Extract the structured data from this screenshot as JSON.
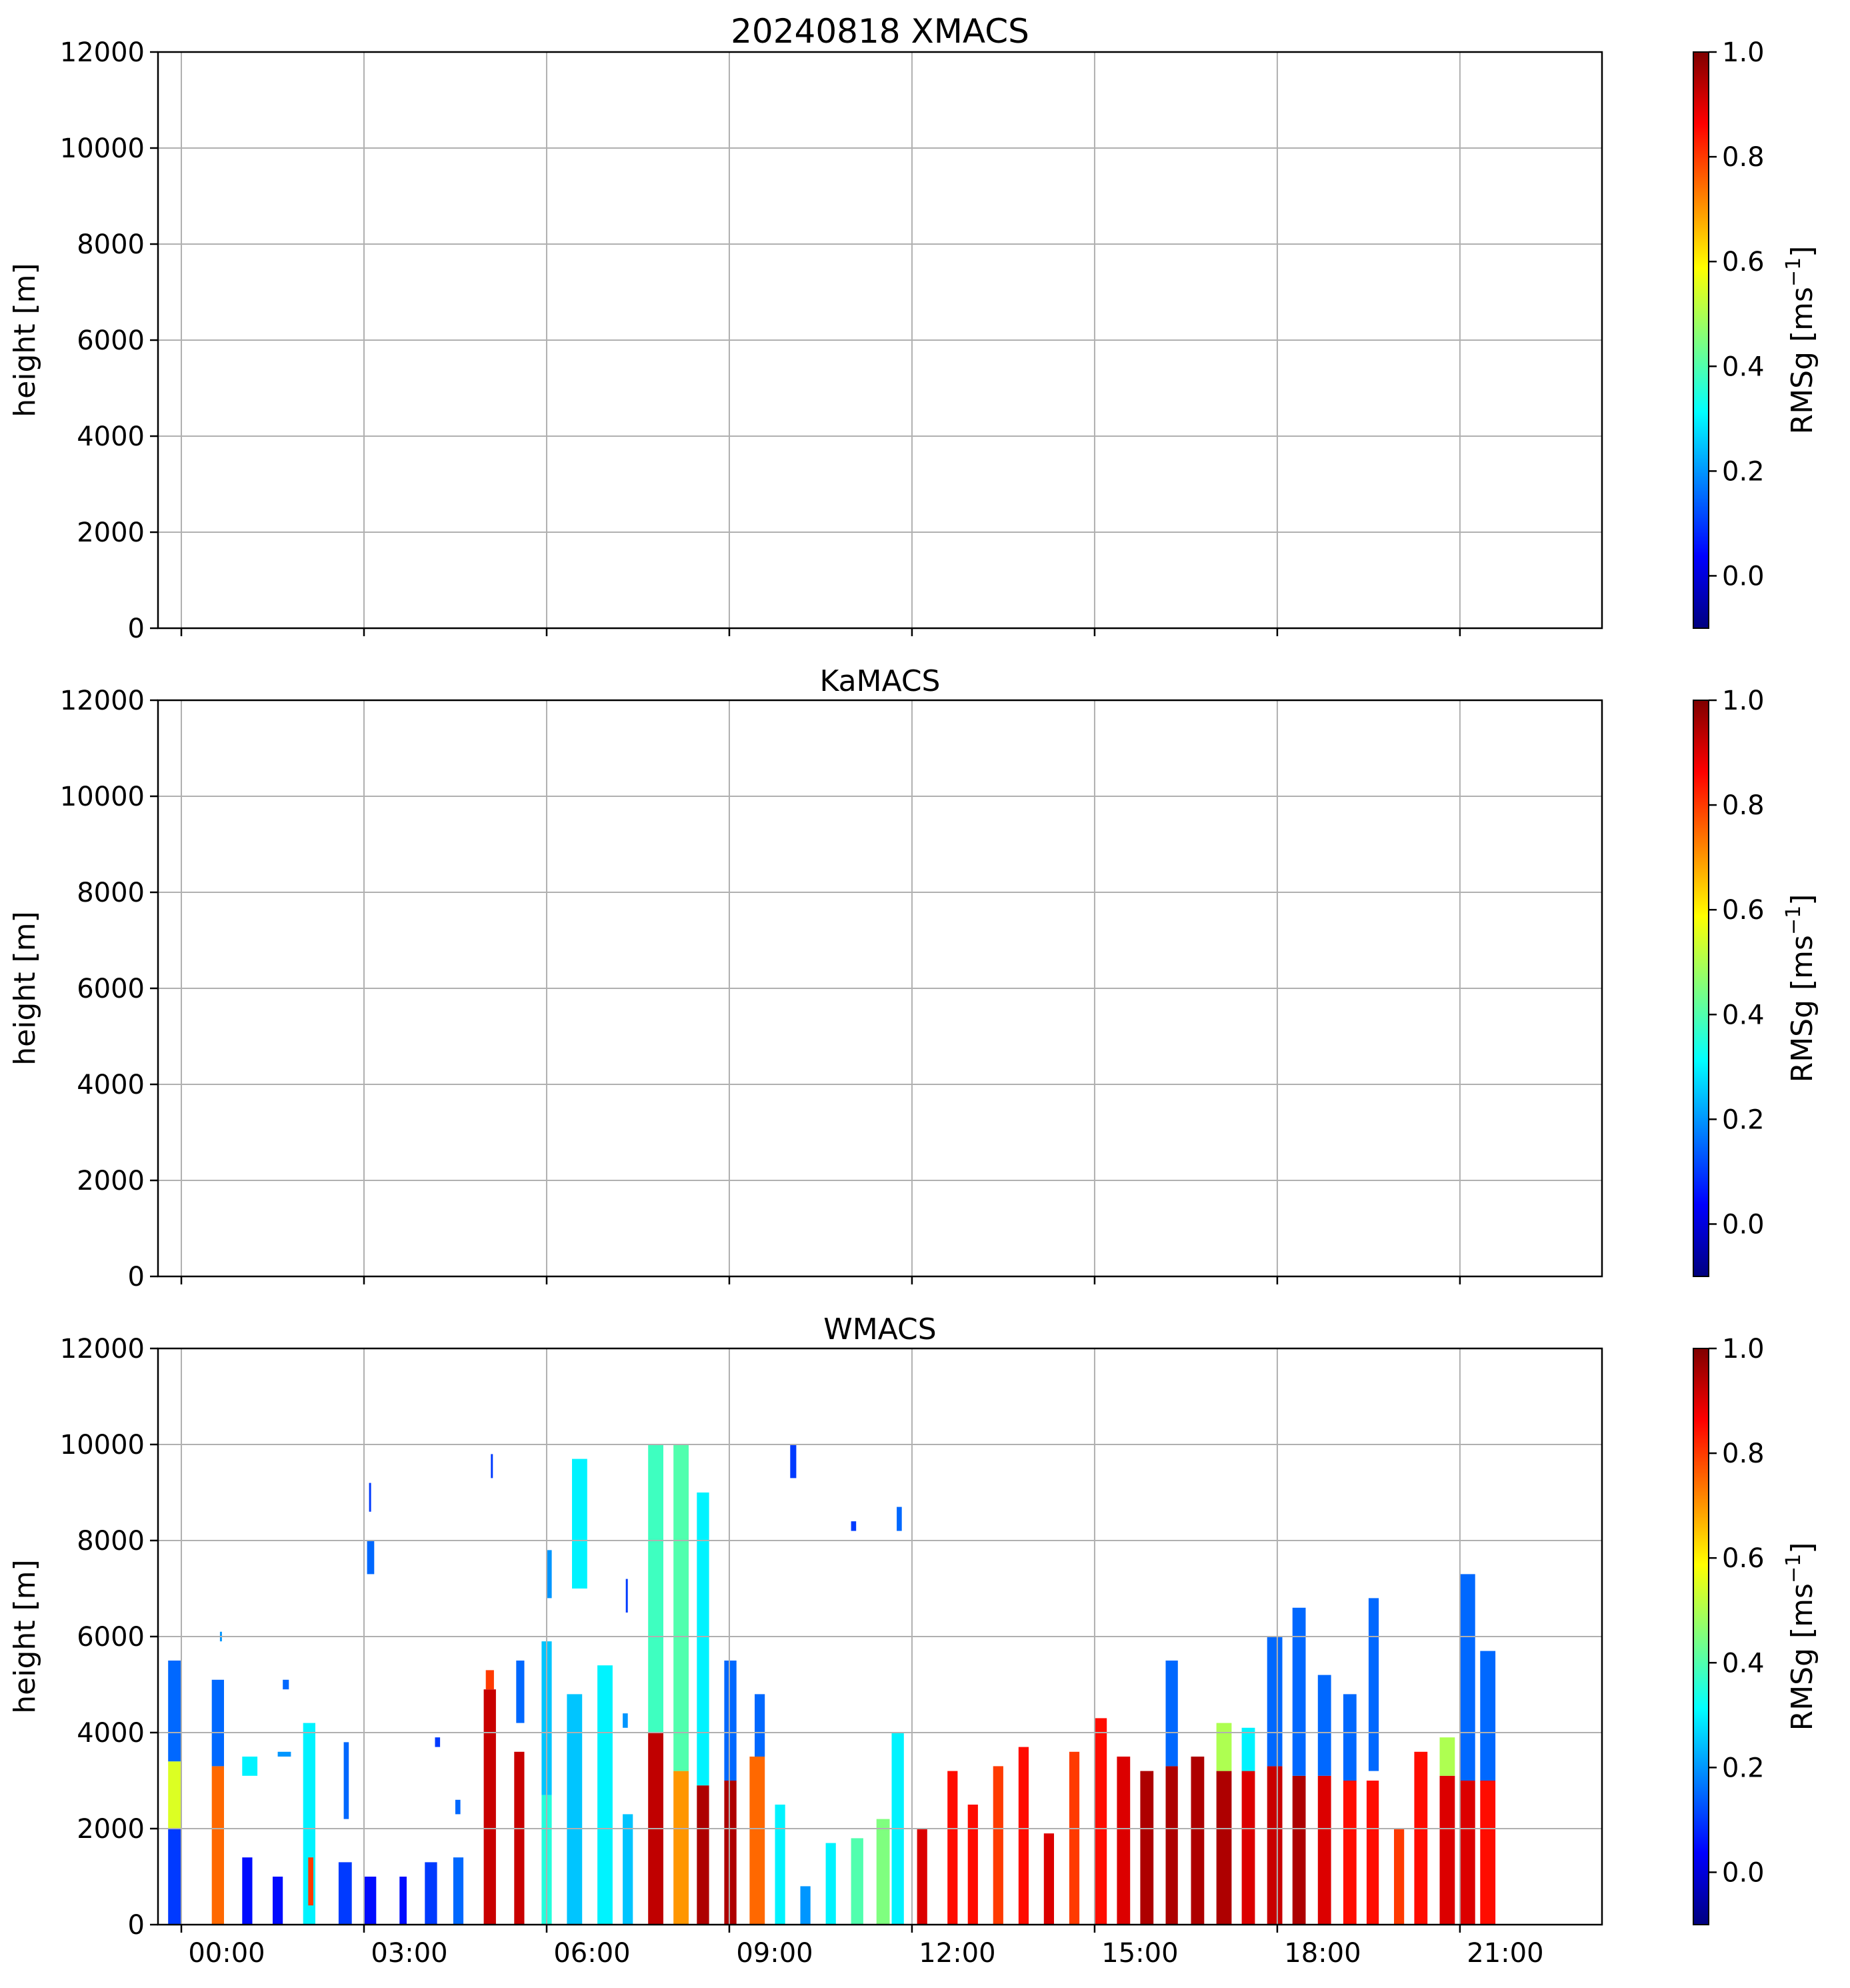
{
  "colormap": [
    "#00007f",
    "#0000ff",
    "#007fff",
    "#00ffff",
    "#7fff7f",
    "#ffff00",
    "#ff7f00",
    "#ff0000",
    "#7f0000"
  ],
  "chart_data": [
    {
      "type": "heatmap",
      "title": "20240818 XMACS",
      "xlabel": "",
      "ylabel": "height [m]",
      "xlim": [
        "23:37",
        "23:20"
      ],
      "xticks": [
        "00:00",
        "03:00",
        "06:00",
        "09:00",
        "12:00",
        "15:00",
        "18:00",
        "21:00"
      ],
      "ylim": [
        0,
        12000
      ],
      "yticks": [
        "0",
        "2000",
        "4000",
        "6000",
        "8000",
        "10000",
        "12000"
      ],
      "grid": true,
      "colorbar": {
        "label": "RMSg [ms",
        "label_sup": "−1",
        "label_end": "]",
        "range": [
          -0.1,
          1.0
        ],
        "ticks": [
          "0.0",
          "0.2",
          "0.4",
          "0.6",
          "0.8",
          "1.0"
        ]
      },
      "segments": []
    },
    {
      "type": "heatmap",
      "title": "KaMACS",
      "xlabel": "",
      "ylabel": "height [m]",
      "xlim": [
        "23:37",
        "23:20"
      ],
      "xticks": [
        "00:00",
        "03:00",
        "06:00",
        "09:00",
        "12:00",
        "15:00",
        "18:00",
        "21:00"
      ],
      "ylim": [
        0,
        12000
      ],
      "yticks": [
        "0",
        "2000",
        "4000",
        "6000",
        "8000",
        "10000",
        "12000"
      ],
      "grid": true,
      "colorbar": {
        "label": "RMSg [ms",
        "label_sup": "−1",
        "label_end": "]",
        "range": [
          -0.1,
          1.0
        ],
        "ticks": [
          "0.0",
          "0.2",
          "0.4",
          "0.6",
          "0.8",
          "1.0"
        ]
      },
      "segments": []
    },
    {
      "type": "heatmap",
      "title": "WMACS",
      "xlabel": "",
      "ylabel": "height [m]",
      "xlim": [
        "23:37",
        "23:20"
      ],
      "xticks": [
        "00:00",
        "03:00",
        "06:00",
        "09:00",
        "12:00",
        "15:00",
        "18:00",
        "21:00"
      ],
      "ylim": [
        0,
        12000
      ],
      "yticks": [
        "0",
        "2000",
        "4000",
        "6000",
        "8000",
        "10000",
        "12000"
      ],
      "grid": true,
      "colorbar": {
        "label": "RMSg [ms",
        "label_sup": "−1",
        "label_end": "]",
        "range": [
          -0.1,
          1.0
        ],
        "ticks": [
          "0.0",
          "0.2",
          "0.4",
          "0.6",
          "0.8",
          "1.0"
        ]
      },
      "segments": [
        {
          "t0": "23:47",
          "t1": "00:00",
          "h0": 0,
          "h1": 2000,
          "v": 0.1
        },
        {
          "t0": "23:47",
          "t1": "00:00",
          "h0": 2000,
          "h1": 3400,
          "v": 0.55
        },
        {
          "t0": "23:47",
          "t1": "00:00",
          "h0": 3400,
          "h1": 5500,
          "v": 0.15
        },
        {
          "t0": "00:30",
          "t1": "00:42",
          "h0": 0,
          "h1": 3300,
          "v": 0.75
        },
        {
          "t0": "00:30",
          "t1": "00:42",
          "h0": 3300,
          "h1": 5100,
          "v": 0.15
        },
        {
          "t0": "00:38",
          "t1": "00:40",
          "h0": 5900,
          "h1": 6100,
          "v": 0.2
        },
        {
          "t0": "01:00",
          "t1": "01:10",
          "h0": 0,
          "h1": 1400,
          "v": 0.05
        },
        {
          "t0": "01:00",
          "t1": "01:15",
          "h0": 3100,
          "h1": 3500,
          "v": 0.3
        },
        {
          "t0": "01:30",
          "t1": "01:40",
          "h0": 0,
          "h1": 1000,
          "v": 0.05
        },
        {
          "t0": "01:35",
          "t1": "01:48",
          "h0": 3500,
          "h1": 3600,
          "v": 0.2
        },
        {
          "t0": "01:40",
          "t1": "01:46",
          "h0": 4900,
          "h1": 5100,
          "v": 0.15
        },
        {
          "t0": "02:00",
          "t1": "02:12",
          "h0": 0,
          "h1": 4200,
          "v": 0.3
        },
        {
          "t0": "02:05",
          "t1": "02:10",
          "h0": 400,
          "h1": 1400,
          "v": 0.8
        },
        {
          "t0": "02:35",
          "t1": "02:48",
          "h0": 0,
          "h1": 1300,
          "v": 0.1
        },
        {
          "t0": "02:40",
          "t1": "02:45",
          "h0": 2200,
          "h1": 3800,
          "v": 0.15
        },
        {
          "t0": "03:00",
          "t1": "03:12",
          "h0": 0,
          "h1": 1000,
          "v": 0.05
        },
        {
          "t0": "03:03",
          "t1": "03:10",
          "h0": 7300,
          "h1": 8000,
          "v": 0.15
        },
        {
          "t0": "03:05",
          "t1": "03:07",
          "h0": 8600,
          "h1": 9200,
          "v": 0.1
        },
        {
          "t0": "03:35",
          "t1": "03:42",
          "h0": 0,
          "h1": 1000,
          "v": 0.05
        },
        {
          "t0": "04:00",
          "t1": "04:12",
          "h0": 0,
          "h1": 1300,
          "v": 0.1
        },
        {
          "t0": "04:10",
          "t1": "04:15",
          "h0": 3700,
          "h1": 3900,
          "v": 0.1
        },
        {
          "t0": "04:28",
          "t1": "04:38",
          "h0": 0,
          "h1": 1400,
          "v": 0.15
        },
        {
          "t0": "04:30",
          "t1": "04:35",
          "h0": 2300,
          "h1": 2600,
          "v": 0.15
        },
        {
          "t0": "04:58",
          "t1": "05:10",
          "h0": 0,
          "h1": 4900,
          "v": 0.92
        },
        {
          "t0": "05:00",
          "t1": "05:08",
          "h0": 4900,
          "h1": 5300,
          "v": 0.8
        },
        {
          "t0": "05:05",
          "t1": "05:07",
          "h0": 9300,
          "h1": 9800,
          "v": 0.1
        },
        {
          "t0": "05:28",
          "t1": "05:38",
          "h0": 0,
          "h1": 3600,
          "v": 0.92
        },
        {
          "t0": "05:30",
          "t1": "05:38",
          "h0": 4200,
          "h1": 5500,
          "v": 0.15
        },
        {
          "t0": "05:55",
          "t1": "06:05",
          "h0": 0,
          "h1": 2700,
          "v": 0.35
        },
        {
          "t0": "05:55",
          "t1": "06:05",
          "h0": 2700,
          "h1": 5900,
          "v": 0.25
        },
        {
          "t0": "06:00",
          "t1": "06:05",
          "h0": 6800,
          "h1": 7800,
          "v": 0.2
        },
        {
          "t0": "06:20",
          "t1": "06:35",
          "h0": 0,
          "h1": 4800,
          "v": 0.25
        },
        {
          "t0": "06:25",
          "t1": "06:40",
          "h0": 7000,
          "h1": 9700,
          "v": 0.3
        },
        {
          "t0": "06:50",
          "t1": "07:05",
          "h0": 0,
          "h1": 5400,
          "v": 0.3
        },
        {
          "t0": "07:15",
          "t1": "07:25",
          "h0": 0,
          "h1": 2300,
          "v": 0.25
        },
        {
          "t0": "07:15",
          "t1": "07:20",
          "h0": 4100,
          "h1": 4400,
          "v": 0.2
        },
        {
          "t0": "07:18",
          "t1": "07:20",
          "h0": 6500,
          "h1": 7200,
          "v": 0.1
        },
        {
          "t0": "07:40",
          "t1": "07:55",
          "h0": 0,
          "h1": 4000,
          "v": 0.93
        },
        {
          "t0": "07:40",
          "t1": "07:55",
          "h0": 4000,
          "h1": 10000,
          "v": 0.38
        },
        {
          "t0": "08:05",
          "t1": "08:20",
          "h0": 0,
          "h1": 3200,
          "v": 0.7
        },
        {
          "t0": "08:05",
          "t1": "08:20",
          "h0": 3200,
          "h1": 10000,
          "v": 0.4
        },
        {
          "t0": "08:28",
          "t1": "08:40",
          "h0": 0,
          "h1": 2900,
          "v": 0.95
        },
        {
          "t0": "08:28",
          "t1": "08:40",
          "h0": 2900,
          "h1": 9000,
          "v": 0.3
        },
        {
          "t0": "08:55",
          "t1": "09:07",
          "h0": 0,
          "h1": 3000,
          "v": 0.95
        },
        {
          "t0": "08:55",
          "t1": "09:07",
          "h0": 3000,
          "h1": 5500,
          "v": 0.15
        },
        {
          "t0": "09:20",
          "t1": "09:35",
          "h0": 0,
          "h1": 3500,
          "v": 0.75
        },
        {
          "t0": "09:25",
          "t1": "09:35",
          "h0": 3500,
          "h1": 4800,
          "v": 0.15
        },
        {
          "t0": "09:45",
          "t1": "09:55",
          "h0": 0,
          "h1": 2500,
          "v": 0.3
        },
        {
          "t0": "10:00",
          "t1": "10:06",
          "h0": 9300,
          "h1": 10000,
          "v": 0.1
        },
        {
          "t0": "10:10",
          "t1": "10:20",
          "h0": 0,
          "h1": 800,
          "v": 0.2
        },
        {
          "t0": "10:35",
          "t1": "10:45",
          "h0": 0,
          "h1": 1700,
          "v": 0.3
        },
        {
          "t0": "11:00",
          "t1": "11:05",
          "h0": 8200,
          "h1": 8400,
          "v": 0.1
        },
        {
          "t0": "11:00",
          "t1": "11:12",
          "h0": 0,
          "h1": 1800,
          "v": 0.4
        },
        {
          "t0": "11:25",
          "t1": "11:38",
          "h0": 0,
          "h1": 2200,
          "v": 0.45
        },
        {
          "t0": "11:40",
          "t1": "11:52",
          "h0": 0,
          "h1": 4000,
          "v": 0.3
        },
        {
          "t0": "11:45",
          "t1": "11:50",
          "h0": 8200,
          "h1": 8700,
          "v": 0.15
        },
        {
          "t0": "12:05",
          "t1": "12:15",
          "h0": 0,
          "h1": 2000,
          "v": 0.9
        },
        {
          "t0": "12:35",
          "t1": "12:45",
          "h0": 0,
          "h1": 3200,
          "v": 0.85
        },
        {
          "t0": "12:55",
          "t1": "13:05",
          "h0": 0,
          "h1": 2500,
          "v": 0.85
        },
        {
          "t0": "13:20",
          "t1": "13:30",
          "h0": 0,
          "h1": 3300,
          "v": 0.8
        },
        {
          "t0": "13:45",
          "t1": "13:55",
          "h0": 0,
          "h1": 3700,
          "v": 0.85
        },
        {
          "t0": "14:10",
          "t1": "14:20",
          "h0": 0,
          "h1": 1900,
          "v": 0.9
        },
        {
          "t0": "14:35",
          "t1": "14:45",
          "h0": 0,
          "h1": 3600,
          "v": 0.8
        },
        {
          "t0": "15:00",
          "t1": "15:12",
          "h0": 0,
          "h1": 4300,
          "v": 0.85
        },
        {
          "t0": "15:22",
          "t1": "15:35",
          "h0": 0,
          "h1": 3500,
          "v": 0.9
        },
        {
          "t0": "15:45",
          "t1": "15:58",
          "h0": 0,
          "h1": 3200,
          "v": 0.95
        },
        {
          "t0": "16:10",
          "t1": "16:22",
          "h0": 0,
          "h1": 3300,
          "v": 0.95
        },
        {
          "t0": "16:10",
          "t1": "16:22",
          "h0": 3300,
          "h1": 5500,
          "v": 0.15
        },
        {
          "t0": "16:35",
          "t1": "16:48",
          "h0": 0,
          "h1": 3500,
          "v": 0.95
        },
        {
          "t0": "17:00",
          "t1": "17:15",
          "h0": 0,
          "h1": 3200,
          "v": 0.95
        },
        {
          "t0": "17:00",
          "t1": "17:15",
          "h0": 3200,
          "h1": 4200,
          "v": 0.5
        },
        {
          "t0": "17:25",
          "t1": "17:38",
          "h0": 0,
          "h1": 3200,
          "v": 0.9
        },
        {
          "t0": "17:25",
          "t1": "17:38",
          "h0": 3200,
          "h1": 4100,
          "v": 0.3
        },
        {
          "t0": "17:50",
          "t1": "18:05",
          "h0": 0,
          "h1": 3300,
          "v": 0.92
        },
        {
          "t0": "17:50",
          "t1": "18:05",
          "h0": 3300,
          "h1": 6000,
          "v": 0.15
        },
        {
          "t0": "18:15",
          "t1": "18:28",
          "h0": 0,
          "h1": 3100,
          "v": 0.95
        },
        {
          "t0": "18:15",
          "t1": "18:28",
          "h0": 3100,
          "h1": 6600,
          "v": 0.15
        },
        {
          "t0": "18:40",
          "t1": "18:53",
          "h0": 0,
          "h1": 3100,
          "v": 0.9
        },
        {
          "t0": "18:40",
          "t1": "18:53",
          "h0": 3100,
          "h1": 5200,
          "v": 0.15
        },
        {
          "t0": "19:05",
          "t1": "19:18",
          "h0": 0,
          "h1": 3000,
          "v": 0.85
        },
        {
          "t0": "19:05",
          "t1": "19:18",
          "h0": 3000,
          "h1": 4800,
          "v": 0.15
        },
        {
          "t0": "19:28",
          "t1": "19:40",
          "h0": 0,
          "h1": 3000,
          "v": 0.85
        },
        {
          "t0": "19:30",
          "t1": "19:40",
          "h0": 3200,
          "h1": 6800,
          "v": 0.15
        },
        {
          "t0": "19:55",
          "t1": "20:05",
          "h0": 0,
          "h1": 2000,
          "v": 0.8
        },
        {
          "t0": "20:15",
          "t1": "20:28",
          "h0": 0,
          "h1": 3600,
          "v": 0.85
        },
        {
          "t0": "20:40",
          "t1": "20:55",
          "h0": 0,
          "h1": 3100,
          "v": 0.9
        },
        {
          "t0": "20:40",
          "t1": "20:55",
          "h0": 3100,
          "h1": 3900,
          "v": 0.5
        },
        {
          "t0": "21:00",
          "t1": "21:15",
          "h0": 0,
          "h1": 3000,
          "v": 0.9
        },
        {
          "t0": "21:00",
          "t1": "21:15",
          "h0": 3000,
          "h1": 7300,
          "v": 0.15
        },
        {
          "t0": "21:20",
          "t1": "21:35",
          "h0": 0,
          "h1": 3000,
          "v": 0.85
        },
        {
          "t0": "21:20",
          "t1": "21:35",
          "h0": 3000,
          "h1": 5700,
          "v": 0.15
        }
      ]
    }
  ]
}
